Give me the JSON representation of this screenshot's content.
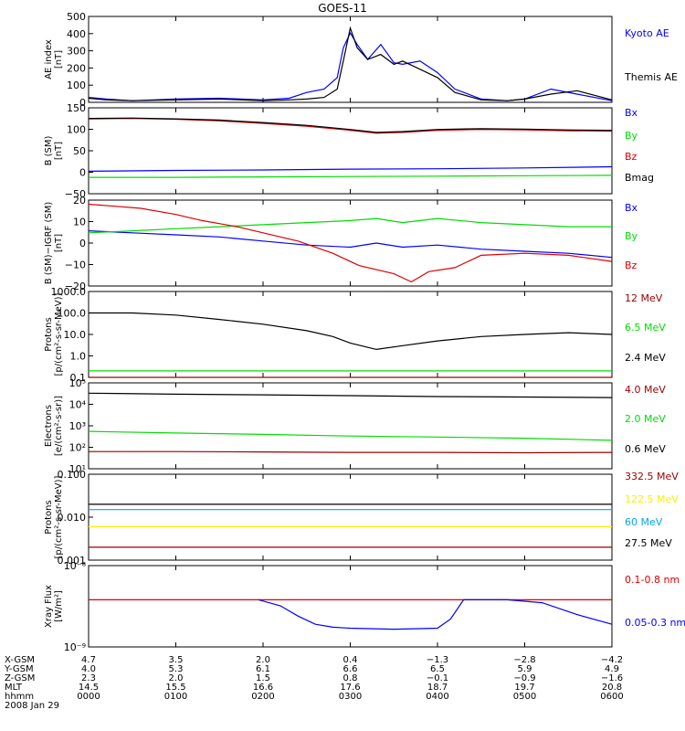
{
  "title": "GOES-11",
  "colors": {
    "blue": "#0000ff",
    "green": "#00dd00",
    "red": "#dd0000",
    "darkred": "#990000",
    "black": "#000000",
    "yellow": "#ffee00",
    "cyan": "#00a8e8"
  },
  "chart_data": [
    {
      "type": "line",
      "panel": "AE index",
      "ylabel": [
        "AE index",
        "[nT]"
      ],
      "yticks": [
        "500",
        "400",
        "300",
        "200",
        "100",
        "0"
      ],
      "ylim": [
        0,
        520
      ],
      "scale": "linear",
      "series": [
        {
          "name": "Kyoto AE",
          "color": "#0000ff",
          "x": [
            0,
            0.2,
            0.5,
            1.0,
            1.5,
            2.0,
            2.3,
            2.5,
            2.7,
            2.85,
            2.92,
            3.0,
            3.08,
            3.2,
            3.35,
            3.5,
            3.6,
            3.8,
            4.0,
            4.2,
            4.5,
            4.8,
            5.0,
            5.3,
            5.6,
            6.0
          ],
          "y": [
            30,
            20,
            10,
            20,
            25,
            15,
            25,
            60,
            80,
            150,
            330,
            420,
            350,
            260,
            350,
            240,
            230,
            250,
            180,
            80,
            20,
            10,
            20,
            80,
            50,
            10
          ]
        },
        {
          "name": "Themis AE",
          "color": "#000000",
          "x": [
            0,
            0.2,
            0.5,
            1.0,
            1.5,
            2.0,
            2.3,
            2.5,
            2.7,
            2.85,
            2.92,
            3.0,
            3.08,
            3.2,
            3.35,
            3.5,
            3.6,
            3.8,
            4.0,
            4.2,
            4.5,
            4.8,
            5.0,
            5.3,
            5.6,
            6.0
          ],
          "y": [
            25,
            15,
            10,
            15,
            20,
            10,
            15,
            20,
            30,
            80,
            250,
            450,
            330,
            260,
            290,
            230,
            250,
            200,
            150,
            60,
            15,
            10,
            20,
            50,
            70,
            15
          ]
        }
      ]
    },
    {
      "type": "line",
      "panel": "B (SM)",
      "ylabel": [
        "B (SM)",
        "[nT]"
      ],
      "yticks": [
        "150",
        "100",
        "50",
        "0",
        "−50"
      ],
      "ylim": [
        -60,
        150
      ],
      "scale": "linear",
      "series": [
        {
          "name": "Bx",
          "color": "#0000ff",
          "x": [
            0,
            1,
            2,
            3,
            4,
            5,
            6
          ],
          "y": [
            -5,
            -3,
            -2,
            0,
            1,
            3,
            6
          ]
        },
        {
          "name": "By",
          "color": "#00dd00",
          "x": [
            0,
            1,
            2,
            3,
            4,
            5,
            6
          ],
          "y": [
            -20,
            -20,
            -19,
            -18,
            -17,
            -16,
            -15
          ]
        },
        {
          "name": "Bz",
          "color": "#dd0000",
          "x": [
            0,
            0.5,
            1.0,
            1.5,
            2.0,
            2.5,
            3.0,
            3.3,
            3.6,
            4.0,
            4.5,
            5.0,
            5.5,
            6.0
          ],
          "y": [
            123,
            124,
            122,
            118,
            112,
            105,
            95,
            88,
            90,
            95,
            97,
            96,
            94,
            93
          ]
        },
        {
          "name": "Bmag",
          "color": "#000000",
          "x": [
            0,
            0.5,
            1.0,
            1.5,
            2.0,
            2.5,
            3.0,
            3.3,
            3.6,
            4.0,
            4.5,
            5.0,
            5.5,
            6.0
          ],
          "y": [
            124,
            125,
            123,
            120,
            114,
            107,
            97,
            90,
            92,
            97,
            99,
            98,
            96,
            95
          ]
        }
      ]
    },
    {
      "type": "line",
      "panel": "B (SM) - IGRF (SM)",
      "ylabel": [
        "B (SM)−IGRF (SM)",
        "[nT]"
      ],
      "yticks": [
        "20",
        "10",
        "0",
        "−10",
        "−20"
      ],
      "ylim": [
        -22,
        20
      ],
      "scale": "linear",
      "series": [
        {
          "name": "Bx",
          "color": "#0000ff",
          "x": [
            0,
            0.5,
            1.0,
            1.5,
            2.0,
            2.5,
            3.0,
            3.3,
            3.6,
            4.0,
            4.5,
            5.0,
            5.5,
            6.0
          ],
          "y": [
            5,
            4,
            3,
            2,
            0,
            -2,
            -3,
            -1,
            -3,
            -2,
            -4,
            -5,
            -6,
            -8
          ]
        },
        {
          "name": "By",
          "color": "#00dd00",
          "x": [
            0,
            0.5,
            1.0,
            1.5,
            2.0,
            2.5,
            3.0,
            3.3,
            3.6,
            4.0,
            4.5,
            5.0,
            5.5,
            6.0
          ],
          "y": [
            4,
            5,
            6,
            7,
            8,
            9,
            10,
            11,
            9,
            11,
            9,
            8,
            7,
            7
          ]
        },
        {
          "name": "Bz",
          "color": "#dd0000",
          "x": [
            0,
            0.3,
            0.6,
            1.0,
            1.3,
            1.7,
            2.0,
            2.4,
            2.8,
            3.1,
            3.5,
            3.7,
            3.9,
            4.2,
            4.5,
            5.0,
            5.5,
            6.0
          ],
          "y": [
            18,
            17,
            16,
            13,
            10,
            7,
            4,
            0,
            -6,
            -12,
            -16,
            -20,
            -15,
            -13,
            -7,
            -6,
            -7,
            -10
          ]
        }
      ]
    },
    {
      "type": "line",
      "panel": "Protons",
      "ylabel": [
        "Protons",
        "[p/(cm²-s-sr-MeV)]"
      ],
      "yticks": [
        "1000.0",
        "100.0",
        "10.0",
        "1.0",
        "0.1"
      ],
      "ylim": [
        0.1,
        1000
      ],
      "scale": "log",
      "series": [
        {
          "name": "12 MeV",
          "color": "#990000",
          "x": [
            0,
            6
          ],
          "y": [
            0.1,
            0.1
          ]
        },
        {
          "name": "6.5 MeV",
          "color": "#00dd00",
          "x": [
            0,
            6
          ],
          "y": [
            0.2,
            0.2
          ]
        },
        {
          "name": "2.4 MeV",
          "color": "#000000",
          "x": [
            0,
            0.5,
            1.0,
            1.5,
            2.0,
            2.5,
            2.8,
            3.0,
            3.3,
            3.6,
            4.0,
            4.5,
            5.0,
            5.5,
            6.0
          ],
          "y": [
            100,
            100,
            80,
            50,
            30,
            15,
            8,
            4,
            2,
            3,
            5,
            8,
            10,
            12,
            10
          ]
        }
      ]
    },
    {
      "type": "line",
      "panel": "Electrons",
      "ylabel": [
        "Electrons",
        "[e/(cm²-s-sr)]"
      ],
      "yticks": [
        "10⁵",
        "10⁴",
        "10³",
        "10²",
        "10¹"
      ],
      "ylim": [
        10,
        1000000
      ],
      "scale": "log",
      "series": [
        {
          "name": "4.0 MeV",
          "color": "#990000",
          "x": [
            0,
            1,
            2,
            3,
            4,
            5,
            6
          ],
          "y": [
            100,
            100,
            95,
            90,
            90,
            85,
            90
          ]
        },
        {
          "name": "2.0 MeV",
          "color": "#00dd00",
          "x": [
            0,
            1,
            2,
            3,
            4,
            5,
            6
          ],
          "y": [
            1500,
            1200,
            1000,
            800,
            700,
            600,
            450
          ]
        },
        {
          "name": "0.6 MeV",
          "color": "#000000",
          "x": [
            0,
            1,
            2,
            3,
            4,
            5,
            6
          ],
          "y": [
            250000,
            220000,
            200000,
            180000,
            160000,
            150000,
            140000
          ]
        }
      ]
    },
    {
      "type": "line",
      "panel": "Protons (high energy)",
      "ylabel": [
        "Protons",
        "[p/(cm²-s-sr-MeV)]"
      ],
      "yticks": [
        "0.100",
        "0.010",
        "0.001"
      ],
      "ylim": [
        0.001,
        0.1
      ],
      "scale": "log",
      "series": [
        {
          "name": "332.5 MeV",
          "color": "#990000",
          "x": [
            0,
            6
          ],
          "y": [
            0.002,
            0.002
          ]
        },
        {
          "name": "122.5 MeV",
          "color": "#ffee00",
          "x": [
            0,
            6
          ],
          "y": [
            0.006,
            0.006
          ]
        },
        {
          "name": "60 MeV",
          "color": "#00a8e8",
          "x": [
            0,
            6
          ],
          "y": [
            0.015,
            0.015
          ]
        },
        {
          "name": "27.5 MeV",
          "color": "#000000",
          "x": [
            0,
            6
          ],
          "y": [
            0.02,
            0.02
          ]
        }
      ]
    },
    {
      "type": "line",
      "panel": "Xray Flux",
      "ylabel": [
        "Xray Flux",
        "[W/m²]"
      ],
      "yticks": [
        "10⁻⁸",
        "10⁻⁹"
      ],
      "ylim": [
        1e-09,
        1e-08
      ],
      "scale": "log",
      "series": [
        {
          "name": "0.1-0.8 nm",
          "color": "#dd0000",
          "x": [
            0,
            6
          ],
          "y": [
            3.8e-09,
            3.8e-09
          ]
        },
        {
          "name": "0.05-0.3 nm",
          "color": "#0000ff",
          "x": [
            1.95,
            2.2,
            2.4,
            2.6,
            2.8,
            3.0,
            3.5,
            4.0,
            4.15,
            4.3,
            4.8,
            5.2,
            5.6,
            6.0
          ],
          "y": [
            3.8e-09,
            3.2e-09,
            2.4e-09,
            1.9e-09,
            1.75e-09,
            1.7e-09,
            1.65e-09,
            1.7e-09,
            2.2e-09,
            3.8e-09,
            3.8e-09,
            3.5e-09,
            2.5e-09,
            1.9e-09
          ]
        }
      ]
    }
  ],
  "ephemeris": {
    "row_labels": [
      "X-GSM",
      "Y-GSM",
      "Z-GSM",
      "MLT",
      "hhmm"
    ],
    "columns": [
      [
        "4.7",
        "4.0",
        "2.3",
        "14.5",
        "0000"
      ],
      [
        "3.5",
        "5.3",
        "2.0",
        "15.5",
        "0100"
      ],
      [
        "2.0",
        "6.1",
        "1.5",
        "16.6",
        "0200"
      ],
      [
        "0.4",
        "6.6",
        "0.8",
        "17.6",
        "0300"
      ],
      [
        "−1.3",
        "6.5",
        "−0.1",
        "18.7",
        "0400"
      ],
      [
        "−2.8",
        "5.9",
        "−0.9",
        "19.7",
        "0500"
      ],
      [
        "−4.2",
        "4.9",
        "−1.6",
        "20.8",
        "0600"
      ]
    ],
    "date": "2008 Jan 29"
  }
}
